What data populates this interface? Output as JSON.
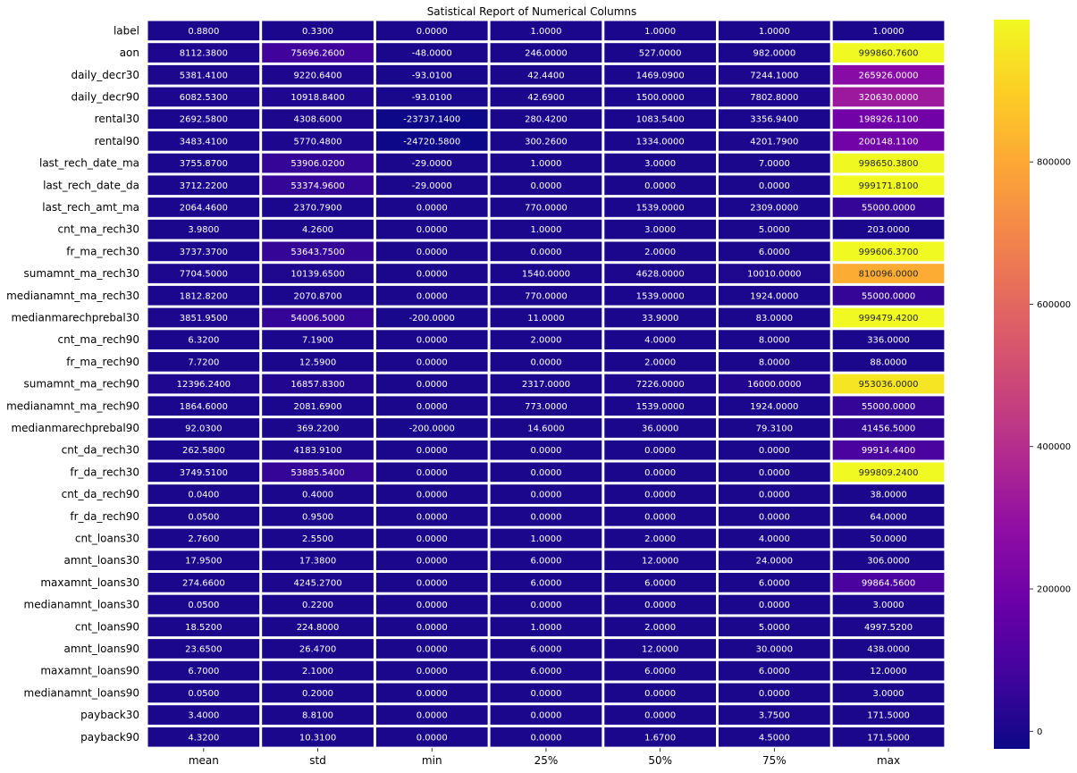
{
  "chart_data": {
    "type": "heatmap",
    "title": "Satistical Report of Numerical Columns",
    "colormap": "plasma",
    "columns": [
      "mean",
      "std",
      "min",
      "25%",
      "50%",
      "75%",
      "max"
    ],
    "rows": [
      {
        "label": "label",
        "values": [
          "0.8800",
          "0.3300",
          "0.0000",
          "1.0000",
          "1.0000",
          "1.0000",
          "1.0000"
        ]
      },
      {
        "label": "aon",
        "values": [
          "8112.3800",
          "75696.2600",
          "-48.0000",
          "246.0000",
          "527.0000",
          "982.0000",
          "999860.7600"
        ]
      },
      {
        "label": "daily_decr30",
        "values": [
          "5381.4100",
          "9220.6400",
          "-93.0100",
          "42.4400",
          "1469.0900",
          "7244.1000",
          "265926.0000"
        ]
      },
      {
        "label": "daily_decr90",
        "values": [
          "6082.5300",
          "10918.8400",
          "-93.0100",
          "42.6900",
          "1500.0000",
          "7802.8000",
          "320630.0000"
        ]
      },
      {
        "label": "rental30",
        "values": [
          "2692.5800",
          "4308.6000",
          "-23737.1400",
          "280.4200",
          "1083.5400",
          "3356.9400",
          "198926.1100"
        ]
      },
      {
        "label": "rental90",
        "values": [
          "3483.4100",
          "5770.4800",
          "-24720.5800",
          "300.2600",
          "1334.0000",
          "4201.7900",
          "200148.1100"
        ]
      },
      {
        "label": "last_rech_date_ma",
        "values": [
          "3755.8700",
          "53906.0200",
          "-29.0000",
          "1.0000",
          "3.0000",
          "7.0000",
          "998650.3800"
        ]
      },
      {
        "label": "last_rech_date_da",
        "values": [
          "3712.2200",
          "53374.9600",
          "-29.0000",
          "0.0000",
          "0.0000",
          "0.0000",
          "999171.8100"
        ]
      },
      {
        "label": "last_rech_amt_ma",
        "values": [
          "2064.4600",
          "2370.7900",
          "0.0000",
          "770.0000",
          "1539.0000",
          "2309.0000",
          "55000.0000"
        ]
      },
      {
        "label": "cnt_ma_rech30",
        "values": [
          "3.9800",
          "4.2600",
          "0.0000",
          "1.0000",
          "3.0000",
          "5.0000",
          "203.0000"
        ]
      },
      {
        "label": "fr_ma_rech30",
        "values": [
          "3737.3700",
          "53643.7500",
          "0.0000",
          "0.0000",
          "2.0000",
          "6.0000",
          "999606.3700"
        ]
      },
      {
        "label": "sumamnt_ma_rech30",
        "values": [
          "7704.5000",
          "10139.6500",
          "0.0000",
          "1540.0000",
          "4628.0000",
          "10010.0000",
          "810096.0000"
        ]
      },
      {
        "label": "medianamnt_ma_rech30",
        "values": [
          "1812.8200",
          "2070.8700",
          "0.0000",
          "770.0000",
          "1539.0000",
          "1924.0000",
          "55000.0000"
        ]
      },
      {
        "label": "medianmarechprebal30",
        "values": [
          "3851.9500",
          "54006.5000",
          "-200.0000",
          "11.0000",
          "33.9000",
          "83.0000",
          "999479.4200"
        ]
      },
      {
        "label": "cnt_ma_rech90",
        "values": [
          "6.3200",
          "7.1900",
          "0.0000",
          "2.0000",
          "4.0000",
          "8.0000",
          "336.0000"
        ]
      },
      {
        "label": "fr_ma_rech90",
        "values": [
          "7.7200",
          "12.5900",
          "0.0000",
          "0.0000",
          "2.0000",
          "8.0000",
          "88.0000"
        ]
      },
      {
        "label": "sumamnt_ma_rech90",
        "values": [
          "12396.2400",
          "16857.8300",
          "0.0000",
          "2317.0000",
          "7226.0000",
          "16000.0000",
          "953036.0000"
        ]
      },
      {
        "label": "medianamnt_ma_rech90",
        "values": [
          "1864.6000",
          "2081.6900",
          "0.0000",
          "773.0000",
          "1539.0000",
          "1924.0000",
          "55000.0000"
        ]
      },
      {
        "label": "medianmarechprebal90",
        "values": [
          "92.0300",
          "369.2200",
          "-200.0000",
          "14.6000",
          "36.0000",
          "79.3100",
          "41456.5000"
        ]
      },
      {
        "label": "cnt_da_rech30",
        "values": [
          "262.5800",
          "4183.9100",
          "0.0000",
          "0.0000",
          "0.0000",
          "0.0000",
          "99914.4400"
        ]
      },
      {
        "label": "fr_da_rech30",
        "values": [
          "3749.5100",
          "53885.5400",
          "0.0000",
          "0.0000",
          "0.0000",
          "0.0000",
          "999809.2400"
        ]
      },
      {
        "label": "cnt_da_rech90",
        "values": [
          "0.0400",
          "0.4000",
          "0.0000",
          "0.0000",
          "0.0000",
          "0.0000",
          "38.0000"
        ]
      },
      {
        "label": "fr_da_rech90",
        "values": [
          "0.0500",
          "0.9500",
          "0.0000",
          "0.0000",
          "0.0000",
          "0.0000",
          "64.0000"
        ]
      },
      {
        "label": "cnt_loans30",
        "values": [
          "2.7600",
          "2.5500",
          "0.0000",
          "1.0000",
          "2.0000",
          "4.0000",
          "50.0000"
        ]
      },
      {
        "label": "amnt_loans30",
        "values": [
          "17.9500",
          "17.3800",
          "0.0000",
          "6.0000",
          "12.0000",
          "24.0000",
          "306.0000"
        ]
      },
      {
        "label": "maxamnt_loans30",
        "values": [
          "274.6600",
          "4245.2700",
          "0.0000",
          "6.0000",
          "6.0000",
          "6.0000",
          "99864.5600"
        ]
      },
      {
        "label": "medianamnt_loans30",
        "values": [
          "0.0500",
          "0.2200",
          "0.0000",
          "0.0000",
          "0.0000",
          "0.0000",
          "3.0000"
        ]
      },
      {
        "label": "cnt_loans90",
        "values": [
          "18.5200",
          "224.8000",
          "0.0000",
          "1.0000",
          "2.0000",
          "5.0000",
          "4997.5200"
        ]
      },
      {
        "label": "amnt_loans90",
        "values": [
          "23.6500",
          "26.4700",
          "0.0000",
          "6.0000",
          "12.0000",
          "30.0000",
          "438.0000"
        ]
      },
      {
        "label": "maxamnt_loans90",
        "values": [
          "6.7000",
          "2.1000",
          "0.0000",
          "6.0000",
          "6.0000",
          "6.0000",
          "12.0000"
        ]
      },
      {
        "label": "medianamnt_loans90",
        "values": [
          "0.0500",
          "0.2000",
          "0.0000",
          "0.0000",
          "0.0000",
          "0.0000",
          "3.0000"
        ]
      },
      {
        "label": "payback30",
        "values": [
          "3.4000",
          "8.8100",
          "0.0000",
          "0.0000",
          "0.0000",
          "3.7500",
          "171.5000"
        ]
      },
      {
        "label": "payback90",
        "values": [
          "4.3200",
          "10.3100",
          "0.0000",
          "0.0000",
          "1.6700",
          "4.5000",
          "171.5000"
        ]
      }
    ],
    "colorbar": {
      "range": [
        -24720.58,
        999860.76
      ],
      "ticks": [
        0,
        200000,
        400000,
        600000,
        800000
      ],
      "tick_labels": [
        "0",
        "200000",
        "400000",
        "600000",
        "800000"
      ]
    }
  }
}
